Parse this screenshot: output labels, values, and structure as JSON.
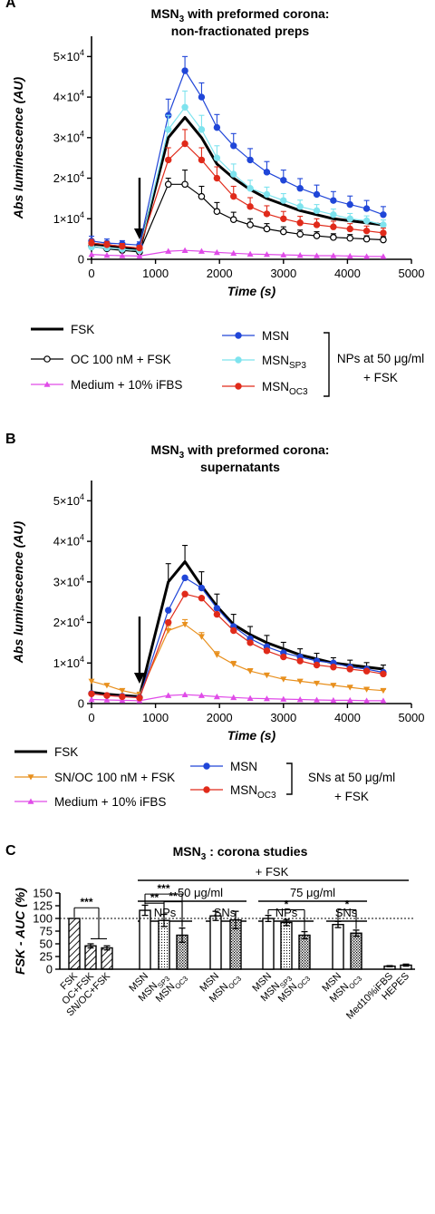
{
  "colors": {
    "black": "#000000",
    "blue": "#2046d8",
    "cyan": "#7ee3ee",
    "red": "#e02a1a",
    "magenta": "#e04be8",
    "orange": "#e8901e"
  },
  "chart_data": [
    {
      "panel": "A",
      "type": "line",
      "title": [
        "MSN3 with preformed corona:",
        "non-fractionated preps"
      ],
      "title_parts": {
        "pre": "MSN",
        "sub": "3",
        "post": " with preformed corona:",
        "line2": "non-fractionated preps"
      },
      "xlabel": "Time (s)",
      "ylabel": "Abs luminescence (AU)",
      "xlim": [
        0,
        5000
      ],
      "ylim": [
        0,
        55000
      ],
      "xticks": [
        0,
        1000,
        2000,
        3000,
        4000,
        5000
      ],
      "yticks": [
        {
          "v": 0,
          "m": "0",
          "e": ""
        },
        {
          "v": 10000,
          "m": "1×10",
          "e": "4"
        },
        {
          "v": 20000,
          "m": "2×10",
          "e": "4"
        },
        {
          "v": 30000,
          "m": "3×10",
          "e": "4"
        },
        {
          "v": 40000,
          "m": "4×10",
          "e": "4"
        },
        {
          "v": 50000,
          "m": "5×10",
          "e": "4"
        }
      ],
      "arrow_at": 750,
      "x": [
        0,
        240,
        480,
        750,
        1200,
        1460,
        1720,
        1960,
        2220,
        2480,
        2740,
        3000,
        3260,
        3520,
        3780,
        4040,
        4300,
        4560
      ],
      "series": [
        {
          "name": "FSK",
          "color": "#000000",
          "marker": "none",
          "width": 3,
          "values": [
            3800,
            3400,
            3000,
            2200,
            30000,
            35000,
            30000,
            23500,
            20000,
            17200,
            15000,
            13500,
            12000,
            11000,
            10000,
            9500,
            9000,
            8500
          ],
          "err": []
        },
        {
          "name": "OC 100 nM + FSK",
          "color": "#000000",
          "marker": "circle-open",
          "width": 1.2,
          "values": [
            3200,
            2600,
            2200,
            1800,
            18500,
            18500,
            15500,
            11800,
            9800,
            8500,
            7500,
            6800,
            6200,
            5800,
            5400,
            5200,
            5000,
            4800
          ],
          "err": [
            700,
            600,
            600,
            500,
            1500,
            3500,
            2500,
            2200,
            1800,
            1500,
            1300,
            1200,
            1000,
            1000,
            900,
            900,
            800,
            800
          ]
        },
        {
          "name": "Medium + 10% iFBS",
          "color": "#e04be8",
          "marker": "triangle",
          "width": 1.2,
          "values": [
            1200,
            1000,
            900,
            800,
            2000,
            2200,
            2000,
            1700,
            1500,
            1300,
            1200,
            1100,
            1000,
            900,
            900,
            800,
            700,
            700
          ],
          "err": []
        },
        {
          "name": "MSN",
          "color": "#2046d8",
          "marker": "circle",
          "width": 1.2,
          "values": [
            4500,
            4000,
            3800,
            3500,
            35500,
            46500,
            40000,
            32500,
            28000,
            24500,
            21500,
            19500,
            17500,
            16000,
            14500,
            13500,
            12500,
            11000
          ],
          "err": [
            1200,
            1000,
            800,
            800,
            4000,
            3500,
            3500,
            3200,
            3000,
            2800,
            2600,
            2500,
            2400,
            2300,
            2200,
            2100,
            2000,
            2000
          ]
        },
        {
          "name": "MSN_SP3",
          "label": {
            "pre": "MSN",
            "sub": "SP3"
          },
          "color": "#7ee3ee",
          "marker": "circle",
          "width": 1.2,
          "values": [
            3000,
            2800,
            2500,
            2200,
            32000,
            37500,
            32000,
            25000,
            21000,
            17500,
            16000,
            14500,
            13000,
            12000,
            11000,
            10000,
            9500,
            8500
          ],
          "err": [
            800,
            700,
            600,
            500,
            3500,
            4000,
            3500,
            3000,
            2500,
            2000,
            1800,
            1700,
            1600,
            1500,
            1400,
            1300,
            1200,
            1200
          ]
        },
        {
          "name": "MSN_OC3",
          "label": {
            "pre": "MSN",
            "sub": "OC3"
          },
          "color": "#e02a1a",
          "marker": "circle",
          "width": 1.2,
          "values": [
            4000,
            3600,
            3200,
            2800,
            24500,
            28500,
            24500,
            20000,
            15500,
            13000,
            11200,
            10000,
            9000,
            8500,
            8000,
            7500,
            7000,
            6500
          ],
          "err": [
            900,
            800,
            700,
            600,
            3000,
            3500,
            3000,
            2800,
            2500,
            2200,
            2000,
            1800,
            1600,
            1500,
            1400,
            1300,
            1200,
            1200
          ]
        }
      ],
      "legend": {
        "group_bracket": "NPs at 50 μg/ml",
        "group_bracket_2": "+ FSK"
      }
    },
    {
      "panel": "B",
      "type": "line",
      "title": [
        "MSN3 with preformed corona:",
        "supernatants"
      ],
      "title_parts": {
        "pre": "MSN",
        "sub": "3",
        "post": " with preformed corona:",
        "line2": "supernatants"
      },
      "xlabel": "Time (s)",
      "ylabel": "Abs luminescence (AU)",
      "xlim": [
        0,
        5000
      ],
      "ylim": [
        0,
        55000
      ],
      "xticks": [
        0,
        1000,
        2000,
        3000,
        4000,
        5000
      ],
      "yticks": [
        {
          "v": 0,
          "m": "0",
          "e": ""
        },
        {
          "v": 10000,
          "m": "1×10",
          "e": "4"
        },
        {
          "v": 20000,
          "m": "2×10",
          "e": "4"
        },
        {
          "v": 30000,
          "m": "3×10",
          "e": "4"
        },
        {
          "v": 40000,
          "m": "4×10",
          "e": "4"
        },
        {
          "v": 50000,
          "m": "5×10",
          "e": "4"
        }
      ],
      "arrow_at": 750,
      "x": [
        0,
        240,
        480,
        750,
        1200,
        1460,
        1720,
        1960,
        2220,
        2480,
        2740,
        3000,
        3260,
        3520,
        3780,
        4040,
        4300,
        4560
      ],
      "series": [
        {
          "name": "FSK",
          "color": "#000000",
          "marker": "none",
          "width": 3,
          "values": [
            2800,
            2300,
            2000,
            1700,
            30000,
            35000,
            29000,
            24000,
            19500,
            17000,
            15000,
            13500,
            12000,
            11000,
            10000,
            9500,
            9000,
            8500
          ],
          "err": [
            0,
            0,
            0,
            0,
            4500,
            4000,
            3500,
            3000,
            2500,
            2000,
            1800,
            1600,
            1500,
            1400,
            1300,
            1200,
            1100,
            1000
          ]
        },
        {
          "name": "SN/OC 100 nM + FSK",
          "color": "#e8901e",
          "marker": "triangle-down",
          "width": 1.2,
          "values": [
            5500,
            4500,
            3200,
            2300,
            18000,
            19500,
            16500,
            12000,
            9700,
            8000,
            7000,
            6000,
            5500,
            5000,
            4500,
            4000,
            3500,
            3200
          ],
          "err": [
            0,
            0,
            0,
            0,
            1200,
            1200,
            1000,
            800,
            700,
            600,
            500,
            500,
            400,
            400,
            400,
            300,
            300,
            300
          ]
        },
        {
          "name": "Medium + 10% iFBS",
          "color": "#e04be8",
          "marker": "triangle",
          "width": 1.2,
          "values": [
            1000,
            900,
            800,
            700,
            2000,
            2200,
            2000,
            1700,
            1500,
            1300,
            1200,
            1100,
            1000,
            900,
            800,
            800,
            700,
            700
          ],
          "err": []
        },
        {
          "name": "MSN",
          "color": "#2046d8",
          "marker": "circle",
          "width": 1.2,
          "values": [
            2500,
            2000,
            1800,
            1500,
            23000,
            31000,
            28500,
            23500,
            19000,
            16000,
            14000,
            12500,
            11500,
            10500,
            10000,
            9000,
            8500,
            7700
          ],
          "err": []
        },
        {
          "name": "MSN_OC3",
          "label": {
            "pre": "MSN",
            "sub": "OC3"
          },
          "color": "#e02a1a",
          "marker": "circle",
          "width": 1.2,
          "values": [
            2400,
            2000,
            1700,
            1400,
            20000,
            27000,
            26000,
            22000,
            18000,
            15000,
            13000,
            11500,
            10500,
            9500,
            9000,
            8500,
            8000,
            7300
          ],
          "err": []
        }
      ],
      "legend": {
        "group_bracket": "SNs at 50 μg/ml",
        "group_bracket_2": "+ FSK"
      }
    },
    {
      "panel": "C",
      "type": "bar",
      "title_parts": {
        "pre": "MSN",
        "sub": "3",
        "post": " : corona studies"
      },
      "ylabel": "FSK - AUC (%)",
      "ylim": [
        0,
        150
      ],
      "yticks": [
        0,
        25,
        50,
        75,
        100,
        125,
        150
      ],
      "reference_line": 100,
      "headers": {
        "fsk": "+ FSK",
        "c50": "50 μg/ml",
        "c75": "75 μg/ml",
        "np": "NPs",
        "sn": "SNs"
      },
      "bars": [
        {
          "label": "FSK",
          "value": 100,
          "err": 0,
          "pattern": "diag"
        },
        {
          "label": "OC+FSK",
          "value": 46,
          "err": 4,
          "pattern": "diag"
        },
        {
          "label": "SN/OC+FSK",
          "value": 42,
          "err": 4,
          "pattern": "diag"
        },
        {
          "label": "MSN",
          "value": 116,
          "err": 10,
          "pattern": "white"
        },
        {
          "label": {
            "pre": "MSN",
            "sub": "SP3"
          },
          "value": 96,
          "err": 12,
          "pattern": "dots"
        },
        {
          "label": {
            "pre": "MSN",
            "sub": "OC3"
          },
          "value": 67,
          "err": 14,
          "pattern": "cross"
        },
        {
          "label": "MSN",
          "value": 105,
          "err": 9,
          "pattern": "white"
        },
        {
          "label": {
            "pre": "MSN",
            "sub": "OC3"
          },
          "value": 97,
          "err": 17,
          "pattern": "cross"
        },
        {
          "label": "MSN",
          "value": 100,
          "err": 6,
          "pattern": "white"
        },
        {
          "label": {
            "pre": "MSN",
            "sub": "SP3"
          },
          "value": 92,
          "err": 6,
          "pattern": "dots"
        },
        {
          "label": {
            "pre": "MSN",
            "sub": "OC3"
          },
          "value": 67,
          "err": 7,
          "pattern": "cross"
        },
        {
          "label": "MSN",
          "value": 88,
          "err": 6,
          "pattern": "white"
        },
        {
          "label": {
            "pre": "MSN",
            "sub": "OC3"
          },
          "value": 71,
          "err": 6,
          "pattern": "cross"
        },
        {
          "label": "Med10%iFBS",
          "value": 6,
          "err": 1,
          "pattern": "white"
        },
        {
          "label": "HEPES",
          "value": 8,
          "err": 2,
          "pattern": "white"
        }
      ],
      "significance": [
        {
          "from": 0,
          "to": 1,
          "label": "***"
        },
        {
          "from": 3,
          "to": 5,
          "label": "***"
        },
        {
          "from": 3,
          "to": 4,
          "label": "**"
        },
        {
          "from": 4,
          "to": 5,
          "label": "**"
        },
        {
          "from": 8,
          "to": 10,
          "label": "*"
        },
        {
          "from": 11,
          "to": 12,
          "label": "*"
        }
      ]
    }
  ]
}
